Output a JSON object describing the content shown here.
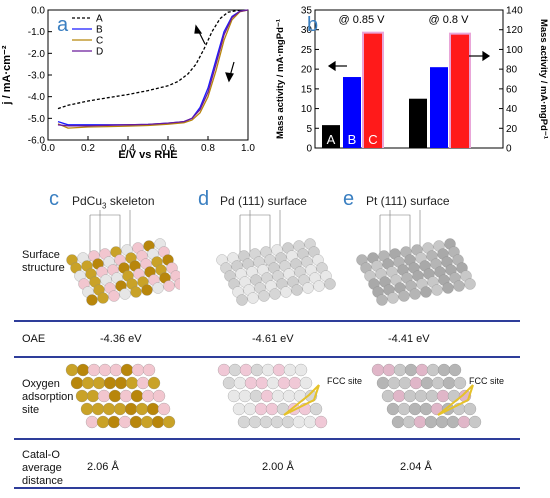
{
  "chart_data": [
    {
      "type": "line",
      "panel": "a",
      "xlabel": "E/V vs RHE",
      "ylabel": "j / mA·cm⁻²",
      "xlim": [
        0.0,
        1.0
      ],
      "ylim": [
        -6.0,
        0.0
      ],
      "xticks": [
        "0.0",
        "0.2",
        "0.4",
        "0.6",
        "0.8",
        "1.0"
      ],
      "yticks": [
        "0.0",
        "-1.0",
        "-2.0",
        "-3.0",
        "-4.0",
        "-5.0",
        "-6.0"
      ],
      "legend_position": "top-left",
      "series": [
        {
          "name": "A",
          "color": "#000000",
          "dash": true,
          "x": [
            0.05,
            0.1,
            0.2,
            0.3,
            0.4,
            0.5,
            0.6,
            0.65,
            0.7,
            0.74,
            0.78,
            0.82,
            0.86,
            0.9,
            0.95,
            1.0
          ],
          "y": [
            -4.55,
            -4.4,
            -4.2,
            -4.05,
            -3.9,
            -3.72,
            -3.5,
            -3.3,
            -2.95,
            -2.5,
            -1.8,
            -1.0,
            -0.4,
            -0.1,
            -0.02,
            0.0
          ]
        },
        {
          "name": "B",
          "color": "#1a1aff",
          "dash": false,
          "x": [
            0.05,
            0.1,
            0.2,
            0.3,
            0.4,
            0.5,
            0.6,
            0.68,
            0.72,
            0.76,
            0.8,
            0.84,
            0.88,
            0.92,
            0.96,
            1.0
          ],
          "y": [
            -5.15,
            -5.3,
            -5.3,
            -5.3,
            -5.3,
            -5.28,
            -5.22,
            -5.15,
            -5.0,
            -4.5,
            -3.6,
            -2.3,
            -1.0,
            -0.3,
            -0.05,
            0.0
          ]
        },
        {
          "name": "C",
          "color": "#b8860b",
          "dash": false,
          "x": [
            0.05,
            0.1,
            0.2,
            0.3,
            0.4,
            0.5,
            0.6,
            0.68,
            0.72,
            0.76,
            0.8,
            0.84,
            0.88,
            0.92,
            0.96,
            1.0
          ],
          "y": [
            -5.25,
            -5.45,
            -5.4,
            -5.38,
            -5.36,
            -5.33,
            -5.27,
            -5.2,
            -5.08,
            -4.75,
            -4.0,
            -2.8,
            -1.4,
            -0.45,
            -0.08,
            0.0
          ]
        },
        {
          "name": "D",
          "color": "#6a1b9a",
          "dash": false,
          "x": [
            0.05,
            0.1,
            0.2,
            0.3,
            0.4,
            0.5,
            0.6,
            0.68,
            0.72,
            0.76,
            0.8,
            0.84,
            0.88,
            0.92,
            0.96,
            1.0
          ],
          "y": [
            -5.3,
            -5.35,
            -5.35,
            -5.32,
            -5.3,
            -5.28,
            -5.22,
            -5.15,
            -5.0,
            -4.6,
            -3.8,
            -2.5,
            -1.15,
            -0.35,
            -0.06,
            0.0
          ]
        }
      ]
    },
    {
      "type": "bar",
      "panel": "b",
      "ylabel_left": "Mass activity / mA·mgPd⁻¹",
      "ylabel_right": "Mass activity / mA·mgPd⁻¹",
      "ylim_left": [
        0,
        35
      ],
      "ylim_right": [
        0,
        140
      ],
      "yticks_left": [
        "0",
        "5",
        "10",
        "15",
        "20",
        "25",
        "30",
        "35"
      ],
      "yticks_right": [
        "0",
        "20",
        "40",
        "60",
        "80",
        "100",
        "120",
        "140"
      ],
      "groups": [
        {
          "label": "@ 0.85 V",
          "axis": "left",
          "bars": [
            {
              "name": "A",
              "value": 5.8,
              "color": "#000000"
            },
            {
              "name": "B",
              "value": 18.0,
              "color": "#0000ff"
            },
            {
              "name": "C",
              "value": 29.0,
              "color": "#ff1a1a"
            }
          ]
        },
        {
          "label": "@ 0.8 V",
          "axis": "right",
          "bars": [
            {
              "name": "A",
              "value": 50,
              "color": "#000000"
            },
            {
              "name": "B",
              "value": 82,
              "color": "#0000ff"
            },
            {
              "name": "C",
              "value": 115,
              "color": "#ff1a1a"
            }
          ]
        }
      ]
    }
  ],
  "panels": {
    "a_letter": "a",
    "b_letter": "b",
    "c_letter": "c",
    "d_letter": "d",
    "e_letter": "e"
  },
  "table": {
    "col_c_title_main": "PdCu",
    "col_c_title_sub": "3",
    "col_c_title_rest": " skeleton",
    "col_d_title": "Pd (111) surface",
    "col_e_title": "Pt (111) surface",
    "row_structure_label": "Surface\nstructure",
    "row_oae_label": "OAE",
    "oae_values": [
      "-4.36 eV",
      "-4.61 eV",
      "-4.41 eV"
    ],
    "row_oxygen_label": "Oxygen\nadsorption\nsite",
    "fcc_label": "FCC site",
    "row_distance_label": "Catal-O\naverage\ndistance",
    "distance_values": [
      "2.06 Å",
      "2.00 Å",
      "2.04 Å"
    ]
  }
}
